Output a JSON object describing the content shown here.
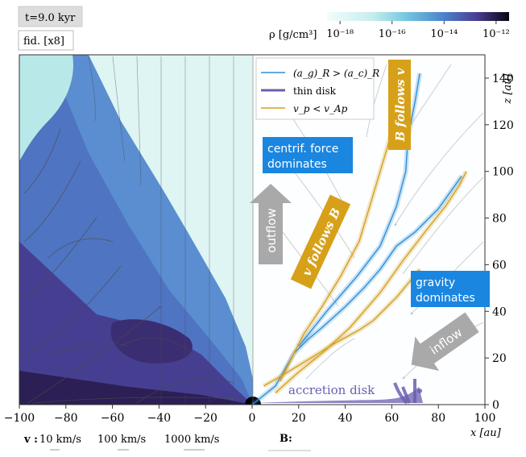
{
  "chart_data": {
    "type": "heatmap",
    "time_label": "t=9.0 kyr",
    "model_label": "fid. [x8]",
    "colorbar": {
      "label": "ρ [g/cm³]",
      "ticks": [
        "10⁻¹⁸",
        "10⁻¹⁶",
        "10⁻¹⁴",
        "10⁻¹²"
      ],
      "log_range": [
        -18.5,
        -11.5
      ]
    },
    "xlabel": "x [au]",
    "ylabel": "z [au]",
    "xlim": [
      -100,
      100
    ],
    "ylim": [
      0,
      150
    ],
    "xticks": [
      -100,
      -80,
      -60,
      -40,
      -20,
      0,
      20,
      40,
      60,
      80,
      100
    ],
    "yticks": [
      0,
      20,
      40,
      60,
      80,
      100,
      120,
      140
    ],
    "legend": {
      "position": "top-right-panel",
      "entries": [
        {
          "label": "(a_g)_R > (a_c)_R",
          "color": "#2f8fd8"
        },
        {
          "label": "thin disk",
          "color": "#6a5fb0"
        },
        {
          "label": "v_p < v_Ap",
          "color": "#d4a020"
        }
      ]
    },
    "annotations": [
      {
        "text": "centrif. force dominates",
        "lines": [
          "centrif. force",
          "dominates"
        ],
        "style": "blue-box"
      },
      {
        "text": "gravity dominates",
        "lines": [
          "gravity",
          "dominates"
        ],
        "style": "blue-box"
      },
      {
        "text": "B follows v",
        "style": "gold-box"
      },
      {
        "text": "v follows B",
        "style": "gold-box"
      },
      {
        "text": "outflow",
        "style": "gray-arrow"
      },
      {
        "text": "inflow",
        "style": "gray-arrow"
      },
      {
        "text": "accretion disk",
        "style": "label"
      }
    ],
    "velocity_key": {
      "label": "v :",
      "entries": [
        "10 km/s",
        "100 km/s",
        "1000 km/s"
      ]
    },
    "field_key": {
      "label": "B:"
    },
    "series": [
      {
        "type": "contour",
        "color": "#2f8fd8",
        "points": [
          [
            0,
            0
          ],
          [
            10,
            8
          ],
          [
            18,
            22
          ],
          [
            24,
            28
          ],
          [
            30,
            33
          ],
          [
            40,
            42
          ],
          [
            48,
            50
          ],
          [
            55,
            58
          ],
          [
            62,
            68
          ],
          [
            70,
            74
          ],
          [
            80,
            84
          ],
          [
            90,
            98
          ]
        ]
      },
      {
        "type": "contour",
        "color": "#2f8fd8",
        "points": [
          [
            20,
            25
          ],
          [
            32,
            40
          ],
          [
            45,
            55
          ],
          [
            55,
            68
          ],
          [
            62,
            85
          ],
          [
            66,
            100
          ],
          [
            67,
            115
          ],
          [
            70,
            130
          ],
          [
            72,
            142
          ]
        ]
      },
      {
        "type": "contour",
        "color": "#d4a020",
        "points": [
          [
            12,
            10
          ],
          [
            17,
            20
          ],
          [
            22,
            30
          ],
          [
            30,
            42
          ],
          [
            38,
            55
          ],
          [
            46,
            70
          ],
          [
            52,
            90
          ],
          [
            58,
            110
          ],
          [
            62,
            125
          ],
          [
            67,
            143
          ]
        ]
      },
      {
        "type": "contour",
        "color": "#d4a020",
        "points": [
          [
            10,
            5
          ],
          [
            20,
            14
          ],
          [
            30,
            22
          ],
          [
            42,
            33
          ],
          [
            55,
            48
          ],
          [
            65,
            62
          ],
          [
            75,
            75
          ],
          [
            83,
            85
          ],
          [
            89,
            94
          ],
          [
            92,
            100
          ]
        ]
      },
      {
        "type": "contour",
        "color": "#d4a020",
        "points": [
          [
            5,
            8
          ],
          [
            12,
            12
          ],
          [
            22,
            18
          ],
          [
            35,
            26
          ],
          [
            46,
            32
          ],
          [
            52,
            36
          ],
          [
            62,
            46
          ],
          [
            72,
            58
          ]
        ]
      }
    ]
  }
}
